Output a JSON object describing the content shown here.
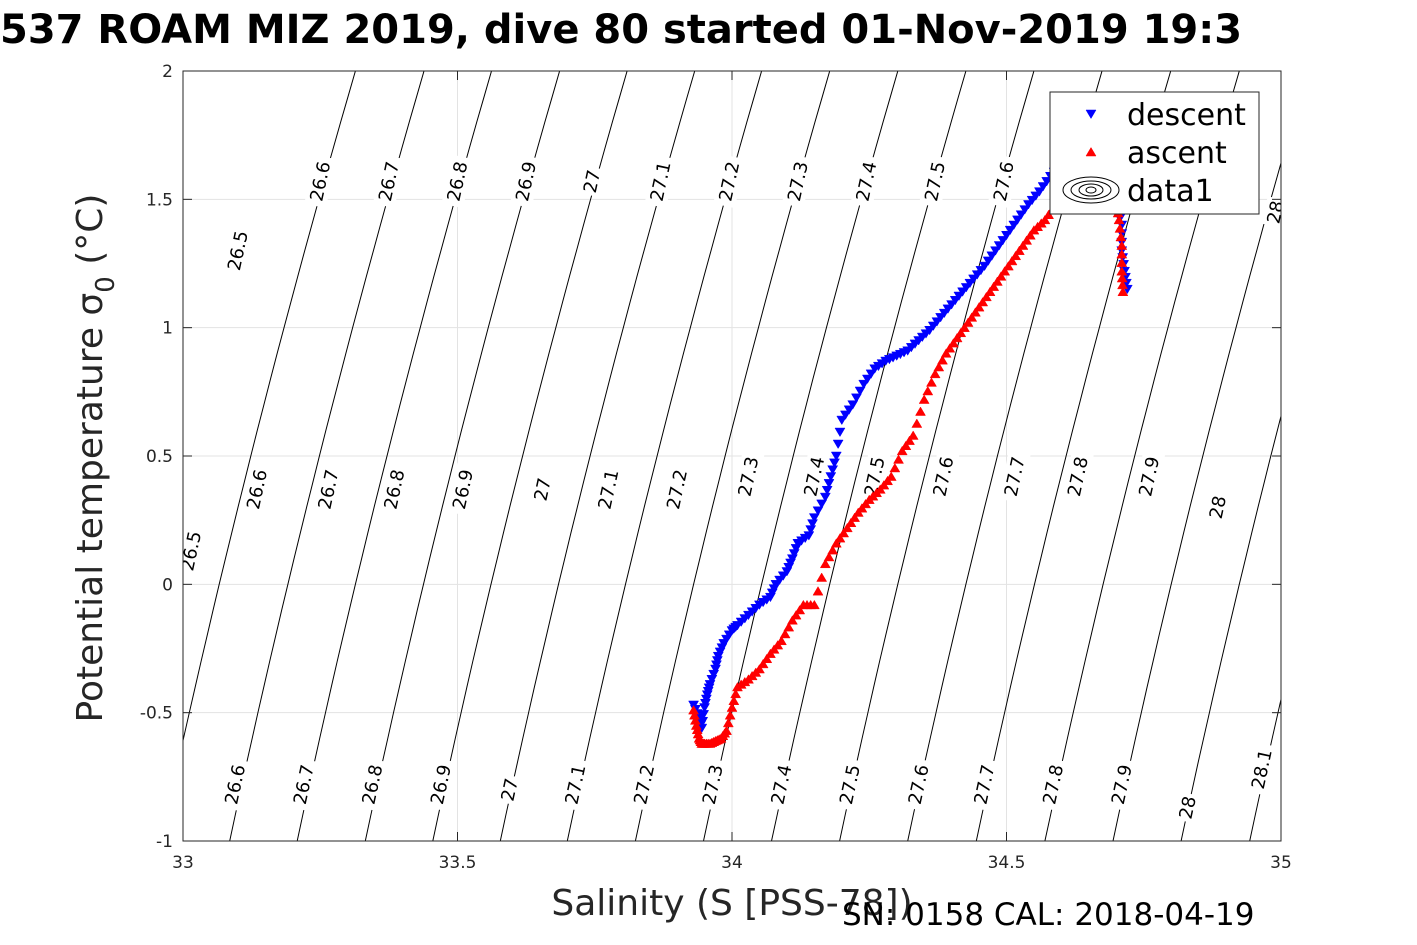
{
  "title": "537 ROAM MIZ 2019, dive 80 started 01-Nov-2019 19:3",
  "footer": "SN: 0158  CAL: 2018-04-19",
  "chart_data": {
    "type": "scatter",
    "xlabel": "Salinity (S [PSS-78])",
    "ylabel_main": "Potential temperature ",
    "ylabel_sigma": "σ",
    "ylabel_sub": "0",
    "ylabel_unit": " (°C)",
    "xlim": [
      33,
      35
    ],
    "ylim": [
      -1,
      2
    ],
    "xticks": [
      "33",
      "33.5",
      "34",
      "34.5",
      "35"
    ],
    "yticks": [
      "-1",
      "-0.5",
      "0",
      "0.5",
      "1",
      "1.5",
      "2"
    ],
    "grid": true,
    "legend": {
      "placement": "top-right",
      "entries": [
        {
          "label": "descent",
          "marker": "down-triangle",
          "color": "#0000ff"
        },
        {
          "label": "ascent",
          "marker": "up-triangle",
          "color": "#ff0000"
        },
        {
          "label": "data1",
          "marker": "contour",
          "color": "#000000"
        }
      ]
    },
    "contours": [
      {
        "level": "26.5",
        "x_at_ymin": 32.96
      },
      {
        "level": "26.6",
        "x_at_ymin": 33.085
      },
      {
        "level": "26.7",
        "x_at_ymin": 33.208
      },
      {
        "level": "26.8",
        "x_at_ymin": 33.332
      },
      {
        "level": "26.9",
        "x_at_ymin": 33.455
      },
      {
        "level": "27",
        "x_at_ymin": 33.578
      },
      {
        "level": "27.1",
        "x_at_ymin": 33.7
      },
      {
        "level": "27.2",
        "x_at_ymin": 33.824
      },
      {
        "level": "27.3",
        "x_at_ymin": 33.948
      },
      {
        "level": "27.4",
        "x_at_ymin": 34.072
      },
      {
        "level": "27.5",
        "x_at_ymin": 34.196
      },
      {
        "level": "27.6",
        "x_at_ymin": 34.32
      },
      {
        "level": "27.7",
        "x_at_ymin": 34.445
      },
      {
        "level": "27.8",
        "x_at_ymin": 34.57
      },
      {
        "level": "27.9",
        "x_at_ymin": 34.694
      },
      {
        "level": "28",
        "x_at_ymin": 34.818
      },
      {
        "level": "28.1",
        "x_at_ymin": 34.943
      }
    ],
    "contour_labels": [
      {
        "level": "26.5",
        "x": 33.015,
        "y": 0.13
      },
      {
        "level": "26.6",
        "x": 33.135,
        "y": 0.37
      },
      {
        "level": "26.7",
        "x": 33.265,
        "y": 0.37
      },
      {
        "level": "26.8",
        "x": 33.385,
        "y": 0.37
      },
      {
        "level": "26.9",
        "x": 33.51,
        "y": 0.37
      },
      {
        "level": "27",
        "x": 33.655,
        "y": 0.37
      },
      {
        "level": "27.1",
        "x": 33.775,
        "y": 0.37
      },
      {
        "level": "27.2",
        "x": 33.9,
        "y": 0.37
      },
      {
        "level": "27.3",
        "x": 34.03,
        "y": 0.42
      },
      {
        "level": "27.4",
        "x": 34.15,
        "y": 0.42
      },
      {
        "level": "27.5",
        "x": 34.26,
        "y": 0.42
      },
      {
        "level": "27.6",
        "x": 34.385,
        "y": 0.42
      },
      {
        "level": "27.7",
        "x": 34.515,
        "y": 0.42
      },
      {
        "level": "27.8",
        "x": 34.63,
        "y": 0.42
      },
      {
        "level": "27.9",
        "x": 34.76,
        "y": 0.42
      },
      {
        "level": "28",
        "x": 34.885,
        "y": 0.3
      },
      {
        "level": "26.5",
        "x": 33.1,
        "y": 1.3
      },
      {
        "level": "26.6",
        "x": 33.25,
        "y": 1.57
      },
      {
        "level": "26.7",
        "x": 33.375,
        "y": 1.57
      },
      {
        "level": "26.8",
        "x": 33.5,
        "y": 1.57
      },
      {
        "level": "26.9",
        "x": 33.625,
        "y": 1.57
      },
      {
        "level": "27",
        "x": 33.745,
        "y": 1.57
      },
      {
        "level": "27.1",
        "x": 33.87,
        "y": 1.57
      },
      {
        "level": "27.2",
        "x": 33.995,
        "y": 1.57
      },
      {
        "level": "27.3",
        "x": 34.12,
        "y": 1.57
      },
      {
        "level": "27.4",
        "x": 34.245,
        "y": 1.57
      },
      {
        "level": "27.5",
        "x": 34.37,
        "y": 1.57
      },
      {
        "level": "27.6",
        "x": 34.495,
        "y": 1.57
      },
      {
        "level": "28",
        "x": 34.99,
        "y": 1.45
      },
      {
        "level": "26.6",
        "x": 33.095,
        "y": -0.78
      },
      {
        "level": "26.7",
        "x": 33.22,
        "y": -0.78
      },
      {
        "level": "26.8",
        "x": 33.345,
        "y": -0.78
      },
      {
        "level": "26.9",
        "x": 33.47,
        "y": -0.78
      },
      {
        "level": "27",
        "x": 33.595,
        "y": -0.8
      },
      {
        "level": "27.1",
        "x": 33.715,
        "y": -0.78
      },
      {
        "level": "27.2",
        "x": 33.84,
        "y": -0.78
      },
      {
        "level": "27.3",
        "x": 33.965,
        "y": -0.78
      },
      {
        "level": "27.4",
        "x": 34.09,
        "y": -0.78
      },
      {
        "level": "27.5",
        "x": 34.215,
        "y": -0.78
      },
      {
        "level": "27.6",
        "x": 34.34,
        "y": -0.78
      },
      {
        "level": "27.7",
        "x": 34.46,
        "y": -0.78
      },
      {
        "level": "27.8",
        "x": 34.585,
        "y": -0.78
      },
      {
        "level": "27.9",
        "x": 34.71,
        "y": -0.78
      },
      {
        "level": "28",
        "x": 34.83,
        "y": -0.87
      },
      {
        "level": "28.1",
        "x": 34.965,
        "y": -0.72
      }
    ],
    "series": [
      {
        "name": "descent",
        "marker": "down-triangle",
        "color": "#0000ff",
        "x": [
          33.93,
          33.94,
          33.945,
          33.95,
          33.955,
          33.96,
          33.97,
          33.975,
          33.985,
          34.0,
          34.01,
          34.03,
          34.05,
          34.07,
          34.08,
          34.1,
          34.11,
          34.12,
          34.14,
          34.15,
          34.17,
          34.18,
          34.19,
          34.2,
          34.22,
          34.24,
          34.26,
          34.28,
          34.3,
          34.32,
          34.34,
          34.36,
          34.38,
          34.4,
          34.42,
          34.44,
          34.46,
          34.48,
          34.5,
          34.52,
          34.54,
          34.56,
          34.58,
          34.6,
          34.62,
          34.64,
          34.66,
          34.68,
          34.7,
          34.71,
          34.71,
          34.715,
          34.72
        ],
        "y": [
          -0.47,
          -0.52,
          -0.56,
          -0.48,
          -0.43,
          -0.39,
          -0.33,
          -0.28,
          -0.23,
          -0.18,
          -0.16,
          -0.12,
          -0.08,
          -0.05,
          0.0,
          0.05,
          0.1,
          0.16,
          0.19,
          0.26,
          0.34,
          0.42,
          0.5,
          0.64,
          0.7,
          0.78,
          0.84,
          0.87,
          0.89,
          0.91,
          0.95,
          0.99,
          1.04,
          1.09,
          1.14,
          1.19,
          1.24,
          1.3,
          1.36,
          1.42,
          1.48,
          1.53,
          1.59,
          1.64,
          1.68,
          1.7,
          1.66,
          1.58,
          1.48,
          1.4,
          1.3,
          1.22,
          1.15
        ]
      },
      {
        "name": "ascent",
        "marker": "up-triangle",
        "color": "#ff0000",
        "x": [
          33.93,
          33.935,
          33.94,
          33.945,
          33.95,
          33.96,
          33.97,
          33.98,
          33.99,
          34.0,
          34.01,
          34.03,
          34.05,
          34.07,
          34.09,
          34.11,
          34.13,
          34.15,
          34.17,
          34.19,
          34.21,
          34.23,
          34.25,
          34.27,
          34.29,
          34.31,
          34.33,
          34.35,
          34.37,
          34.39,
          34.41,
          34.43,
          34.45,
          34.47,
          34.49,
          34.51,
          34.53,
          34.55,
          34.57,
          34.59,
          34.61,
          34.63,
          34.65,
          34.67,
          34.69,
          34.7,
          34.705,
          34.71,
          34.71,
          34.712
        ],
        "y": [
          -0.49,
          -0.55,
          -0.6,
          -0.62,
          -0.62,
          -0.62,
          -0.61,
          -0.6,
          -0.57,
          -0.48,
          -0.4,
          -0.37,
          -0.33,
          -0.27,
          -0.22,
          -0.14,
          -0.08,
          -0.08,
          0.08,
          0.16,
          0.22,
          0.28,
          0.33,
          0.37,
          0.42,
          0.52,
          0.58,
          0.72,
          0.82,
          0.9,
          0.96,
          1.02,
          1.08,
          1.14,
          1.2,
          1.26,
          1.32,
          1.38,
          1.42,
          1.48,
          1.52,
          1.58,
          1.64,
          1.6,
          1.55,
          1.5,
          1.42,
          1.32,
          1.22,
          1.14
        ]
      }
    ]
  }
}
